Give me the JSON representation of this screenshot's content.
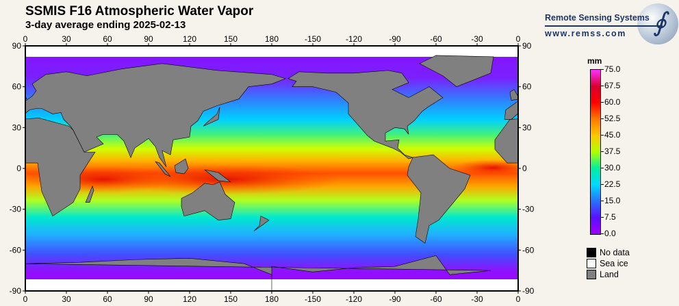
{
  "header": {
    "title": "SSMIS F16 Atmospheric Water Vapor",
    "subtitle": "3-day average ending 2025-02-13"
  },
  "logo": {
    "name": "Remote Sensing Systems",
    "url": "www.remss.com"
  },
  "axes": {
    "lon_labels": [
      "0",
      "30",
      "60",
      "90",
      "120",
      "150",
      "180",
      "-150",
      "-120",
      "-90",
      "-60",
      "-30",
      "0"
    ],
    "lat_labels": [
      "90",
      "60",
      "30",
      "0",
      "-30",
      "-60",
      "-90"
    ]
  },
  "colorbar": {
    "unit": "mm",
    "min": 0,
    "max": 75,
    "ticks": [
      "75.0",
      "67.5",
      "60.0",
      "52.5",
      "45.0",
      "37.5",
      "30.0",
      "22.5",
      "15.0",
      "7.5",
      "0.0"
    ]
  },
  "legend": [
    {
      "label": "No data",
      "color": "#000000"
    },
    {
      "label": "Sea ice",
      "color": "#ffffff"
    },
    {
      "label": "Land",
      "color": "#808080"
    }
  ],
  "colors": {
    "land": "#808080",
    "sea_ice": "#ffffff",
    "background": "#f6f3ec"
  }
}
